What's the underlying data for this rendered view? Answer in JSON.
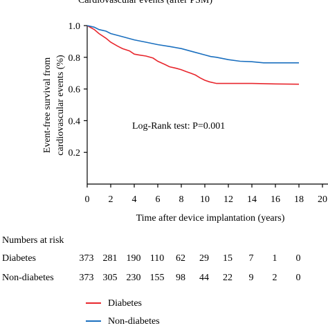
{
  "chart_data": {
    "type": "line",
    "title": "Cardiovascular events (after PSM)",
    "xlabel": "Time after device implantation (years)",
    "ylabel": "Event-free survival from cardiovascular events (%)",
    "ylabel_lines": [
      "Event-free survival from",
      "cardiovascular events (%)"
    ],
    "xlim": [
      0,
      20
    ],
    "ylim": [
      0,
      1.0
    ],
    "x_ticks": [
      0,
      2,
      4,
      6,
      8,
      10,
      12,
      14,
      16,
      18,
      20
    ],
    "x_tick_labels": [
      "0",
      "2",
      "4",
      "6",
      "8",
      "10",
      "12",
      "14",
      "16",
      "18",
      "20"
    ],
    "y_ticks": [
      0.2,
      0.4,
      0.6,
      0.8,
      1.0
    ],
    "y_tick_labels": [
      "0.2",
      "0.4",
      "0.6",
      "0.8",
      "1.0"
    ],
    "annotation": "Log-Rank test: P=0.001",
    "grid": false,
    "legend_position": "bottom-left",
    "series": [
      {
        "name": "Diabetes",
        "color": "#e8262d",
        "x": [
          0,
          0.6,
          1.0,
          1.6,
          2.0,
          2.6,
          3.0,
          3.6,
          4.0,
          4.4,
          5.0,
          5.6,
          6.0,
          6.6,
          7.0,
          7.6,
          8.0,
          8.4,
          8.8,
          9.2,
          9.6,
          10.0,
          10.4,
          11.0,
          12.0,
          14.0,
          16.0,
          18.0
        ],
        "y": [
          1.0,
          0.975,
          0.95,
          0.92,
          0.895,
          0.87,
          0.855,
          0.84,
          0.82,
          0.815,
          0.808,
          0.795,
          0.775,
          0.755,
          0.74,
          0.73,
          0.722,
          0.71,
          0.7,
          0.688,
          0.67,
          0.655,
          0.645,
          0.635,
          0.635,
          0.635,
          0.632,
          0.63
        ]
      },
      {
        "name": "Non-diabetes",
        "color": "#1a6fbf",
        "x": [
          0,
          0.6,
          1.0,
          1.6,
          2.0,
          3.0,
          4.0,
          5.0,
          6.0,
          7.0,
          8.0,
          9.0,
          10.0,
          10.5,
          11.0,
          12.0,
          13.0,
          14.0,
          15.0,
          16.0,
          17.0,
          18.0
        ],
        "y": [
          1.0,
          0.99,
          0.975,
          0.965,
          0.95,
          0.93,
          0.91,
          0.895,
          0.88,
          0.868,
          0.855,
          0.835,
          0.815,
          0.805,
          0.8,
          0.785,
          0.775,
          0.772,
          0.765,
          0.765,
          0.765,
          0.765
        ]
      }
    ]
  },
  "risk_table": {
    "heading": "Numbers at risk",
    "rows": [
      {
        "label": "Diabetes",
        "values": [
          "373",
          "281",
          "190",
          "110",
          "62",
          "29",
          "15",
          "7",
          "1",
          "0"
        ]
      },
      {
        "label": "Non-diabetes",
        "values": [
          "373",
          "305",
          "230",
          "155",
          "98",
          "44",
          "22",
          "9",
          "2",
          "0"
        ]
      }
    ]
  },
  "legend": [
    {
      "label": "Diabetes",
      "color": "#e8262d"
    },
    {
      "label": "Non-diabetes",
      "color": "#1a6fbf"
    }
  ]
}
